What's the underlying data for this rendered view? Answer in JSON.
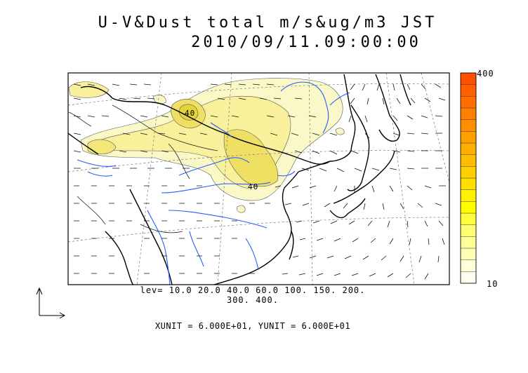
{
  "title": "U-V&Dust total m/s&ug/m3 JST",
  "datetime": "2010/09/11.09:00:00",
  "colorbar": {
    "max_label": "400",
    "min_label": "10",
    "colors": [
      "#fffff0",
      "#ffffd8",
      "#ffffb8",
      "#ffff98",
      "#ffff70",
      "#ffff40",
      "#ffff00",
      "#ffef00",
      "#ffdf00",
      "#ffcf00",
      "#ffbf00",
      "#ffaf00",
      "#ff9f00",
      "#ff8f00",
      "#ff7f00",
      "#ff6f00",
      "#ff5f00",
      "#ff4f00"
    ]
  },
  "contour_levels_text_1": "lev= 10.0 20.0 40.0 60.0 100. 150. 200.",
  "contour_levels_text_2": "300. 400.",
  "unit_text": "XUNIT = 6.000E+01, YUNIT = 6.000E+01",
  "contour_labels": [
    "40",
    "40"
  ],
  "colors": {
    "coast": "#000000",
    "rivers": "#1f5fff",
    "dust_low": "#fbf7c4",
    "dust_mid": "#f3ea7a",
    "dust_high": "#e8d63a"
  }
}
